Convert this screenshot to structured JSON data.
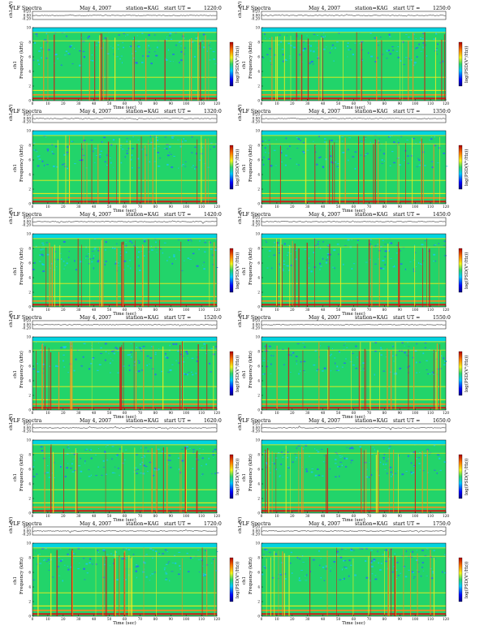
{
  "panel_title": "VLF Spectra",
  "date_text": "May 4, 2007",
  "station_text": "station=KAG",
  "start_label": "start  UT  =",
  "time_axis_label": "Time  (sec)",
  "time_ticks": [
    "0",
    "10",
    "20",
    "30",
    "40",
    "50",
    "60",
    "70",
    "80",
    "90",
    "100",
    "110",
    "120"
  ],
  "freq_axis_label": "Frequency  (kHz)",
  "freq_ticks": [
    "0",
    "2",
    "4",
    "6",
    "8",
    "10"
  ],
  "channel_label": "ch1",
  "waveform_axis_label": "ch1 (V)",
  "waveform_ticks": [
    "0.20",
    "0.00",
    "-0.20"
  ],
  "colorbar_label": "log(PSD(V²/Hz))",
  "colors": {
    "background": "#00d4e0",
    "spectrogram_base": "#22d46a",
    "band_yellow": "#f2ea1c",
    "band_orange": "#ff8a1c",
    "band_red": "#d81010",
    "speckle_blue": "#2a60ff",
    "top_region_cyan": "#17c8f0",
    "axes": "#000000"
  },
  "chart_data": [
    {
      "type": "heatmap",
      "start_ut": "1220:0",
      "xlabel": "Time  (sec)",
      "ylabel": "Frequency  (kHz)",
      "xlim": [
        0,
        120
      ],
      "ylim": [
        0,
        10
      ]
    },
    {
      "type": "heatmap",
      "start_ut": "1250:0",
      "xlabel": "Time  (sec)",
      "ylabel": "Frequency  (kHz)",
      "xlim": [
        0,
        120
      ],
      "ylim": [
        0,
        10
      ]
    },
    {
      "type": "heatmap",
      "start_ut": "1320:0",
      "xlabel": "Time  (sec)",
      "ylabel": "Frequency  (kHz)",
      "xlim": [
        0,
        120
      ],
      "ylim": [
        0,
        10
      ]
    },
    {
      "type": "heatmap",
      "start_ut": "1350:0",
      "xlabel": "Time  (sec)",
      "ylabel": "Frequency  (kHz)",
      "xlim": [
        0,
        120
      ],
      "ylim": [
        0,
        10
      ]
    },
    {
      "type": "heatmap",
      "start_ut": "1420:0",
      "xlabel": "Time  (sec)",
      "ylabel": "Frequency  (kHz)",
      "xlim": [
        0,
        120
      ],
      "ylim": [
        0,
        10
      ]
    },
    {
      "type": "heatmap",
      "start_ut": "1450:0",
      "xlabel": "Time  (sec)",
      "ylabel": "Frequency  (kHz)",
      "xlim": [
        0,
        120
      ],
      "ylim": [
        0,
        10
      ]
    },
    {
      "type": "heatmap",
      "start_ut": "1520:0",
      "xlabel": "Time  (sec)",
      "ylabel": "Frequency  (kHz)",
      "xlim": [
        0,
        120
      ],
      "ylim": [
        0,
        10
      ]
    },
    {
      "type": "heatmap",
      "start_ut": "1550:0",
      "xlabel": "Time  (sec)",
      "ylabel": "Frequency  (kHz)",
      "xlim": [
        0,
        120
      ],
      "ylim": [
        0,
        10
      ]
    },
    {
      "type": "heatmap",
      "start_ut": "1620:0",
      "xlabel": "Time  (sec)",
      "ylabel": "Frequency  (kHz)",
      "xlim": [
        0,
        120
      ],
      "ylim": [
        0,
        10
      ]
    },
    {
      "type": "heatmap",
      "start_ut": "1650:0",
      "xlabel": "Time  (sec)",
      "ylabel": "Frequency  (kHz)",
      "xlim": [
        0,
        120
      ],
      "ylim": [
        0,
        10
      ]
    },
    {
      "type": "heatmap",
      "start_ut": "1720:0",
      "xlabel": "Time  (sec)",
      "ylabel": "Frequency  (kHz)",
      "xlim": [
        0,
        120
      ],
      "ylim": [
        0,
        10
      ]
    },
    {
      "type": "heatmap",
      "start_ut": "1750:0",
      "xlabel": "Time  (sec)",
      "ylabel": "Frequency  (kHz)",
      "xlim": [
        0,
        120
      ],
      "ylim": [
        0,
        10
      ]
    }
  ]
}
